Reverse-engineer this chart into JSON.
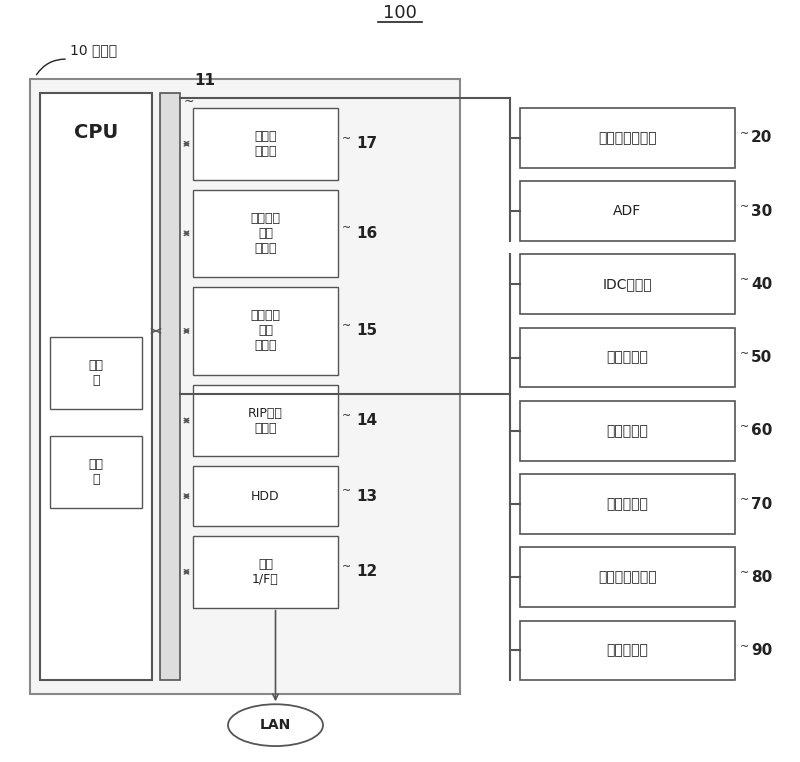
{
  "title": "100",
  "bg_color": "#ffffff",
  "box_edge_color": "#555555",
  "box_face_color": "#ffffff",
  "text_color": "#222222",
  "control_label": "10 控制部",
  "cpu_label": "CPU",
  "bus_num": "11",
  "judge_label": "判断\n部",
  "calc_label": "运算\n部",
  "lan_label": "LAN",
  "inner_box_labels": [
    "执行用\n存储器",
    "用纸信息\n容纳\n存储器",
    "输出图像\n读取\n存储器",
    "RIP图像\n存储器",
    "HDD",
    "通信\n1/F部"
  ],
  "inner_box_nums": [
    "17",
    "16",
    "15",
    "14",
    "13",
    "12"
  ],
  "right_box_labels": [
    "输出图像读取部",
    "ADF",
    "IDC传感器",
    "温度传感器",
    "操作输入部",
    "图像印刷部",
    "聚光透镜调整部",
    "面板显示部"
  ],
  "right_box_nums": [
    "20",
    "30",
    "40",
    "50",
    "60",
    "70",
    "80",
    "90"
  ]
}
